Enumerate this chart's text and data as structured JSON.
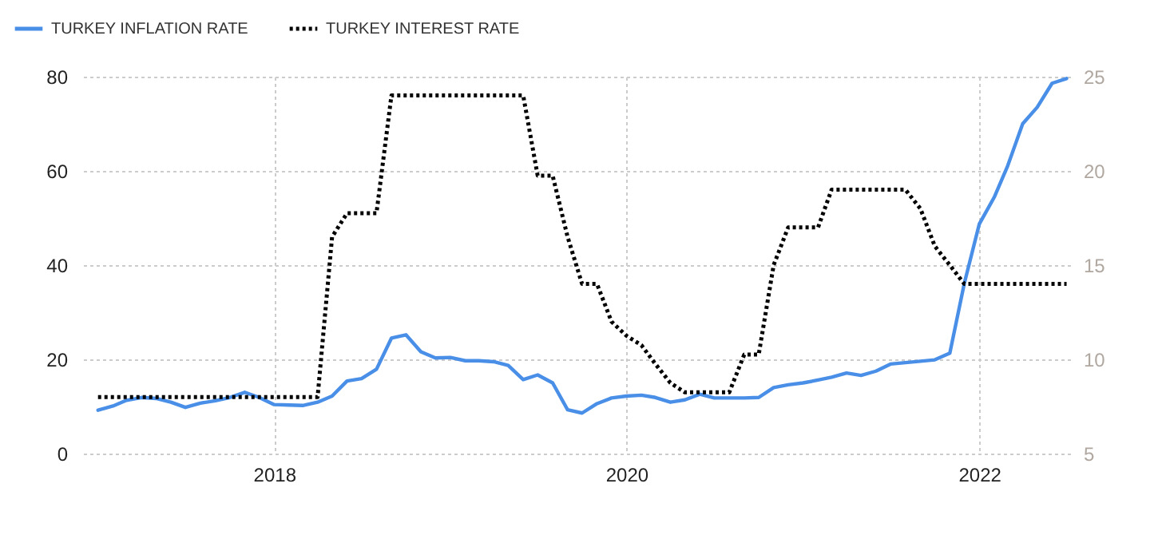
{
  "chart_data": {
    "type": "line",
    "x": [
      "2017-01",
      "2017-02",
      "2017-03",
      "2017-04",
      "2017-05",
      "2017-06",
      "2017-07",
      "2017-08",
      "2017-09",
      "2017-10",
      "2017-11",
      "2017-12",
      "2018-01",
      "2018-02",
      "2018-03",
      "2018-04",
      "2018-05",
      "2018-06",
      "2018-07",
      "2018-08",
      "2018-09",
      "2018-10",
      "2018-11",
      "2018-12",
      "2019-01",
      "2019-02",
      "2019-03",
      "2019-04",
      "2019-05",
      "2019-06",
      "2019-07",
      "2019-08",
      "2019-09",
      "2019-10",
      "2019-11",
      "2019-12",
      "2020-01",
      "2020-02",
      "2020-03",
      "2020-04",
      "2020-05",
      "2020-06",
      "2020-07",
      "2020-08",
      "2020-09",
      "2020-10",
      "2020-11",
      "2020-12",
      "2021-01",
      "2021-02",
      "2021-03",
      "2021-04",
      "2021-05",
      "2021-06",
      "2021-07",
      "2021-08",
      "2021-09",
      "2021-10",
      "2021-11",
      "2021-12",
      "2022-01",
      "2022-02",
      "2022-03",
      "2022-04",
      "2022-05",
      "2022-06",
      "2022-07"
    ],
    "series": [
      {
        "name": "TURKEY INFLATION RATE",
        "color": "#4a8fe7",
        "line_style": "solid",
        "values": [
          9.2,
          10.1,
          11.3,
          11.9,
          11.7,
          10.9,
          9.8,
          10.7,
          11.2,
          11.9,
          13,
          11.9,
          10.4,
          10.3,
          10.2,
          10.9,
          12.2,
          15.4,
          15.9,
          17.9,
          24.5,
          25.2,
          21.6,
          20.3,
          20.4,
          19.7,
          19.7,
          19.5,
          18.7,
          15.7,
          16.7,
          15,
          9.3,
          8.6,
          10.6,
          11.8,
          12.2,
          12.4,
          11.9,
          10.9,
          11.4,
          12.6,
          11.8,
          11.8,
          11.8,
          11.9,
          14,
          14.6,
          15,
          15.6,
          16.2,
          17.1,
          16.6,
          17.5,
          19,
          19.3,
          19.6,
          19.9,
          21.3,
          36.1,
          48.7,
          54.4,
          61.1,
          70,
          73.5,
          78.6,
          79.6
        ]
      },
      {
        "name": "TURKEY INTEREST RATE",
        "color": "#000000",
        "line_style": "dotted",
        "axis": "y2",
        "values": [
          8,
          8,
          8,
          8,
          8,
          8,
          8,
          8,
          8,
          8,
          8,
          8,
          8,
          8,
          8,
          8,
          16.5,
          17.75,
          17.75,
          17.75,
          24,
          24,
          24,
          24,
          24,
          24,
          24,
          24,
          24,
          24,
          19.75,
          19.75,
          16.5,
          14,
          14,
          12,
          11.25,
          10.75,
          9.75,
          8.75,
          8.25,
          8.25,
          8.25,
          8.25,
          10.25,
          10.25,
          15,
          17,
          17,
          17,
          19,
          19,
          19,
          19,
          19,
          19,
          18,
          16,
          15,
          14,
          14,
          14,
          14,
          14,
          14,
          14,
          14
        ]
      }
    ],
    "xlim": [
      "2016-12-01",
      "2022-07-15"
    ],
    "xticks": [
      "2018",
      "2020",
      "2022"
    ],
    "ylim": [
      0,
      80
    ],
    "yticks": [
      0,
      20,
      40,
      60,
      80
    ],
    "y2lim": [
      5,
      25
    ],
    "y2ticks": [
      5,
      10,
      15,
      20,
      25
    ],
    "grid": true,
    "legend": "top left"
  }
}
